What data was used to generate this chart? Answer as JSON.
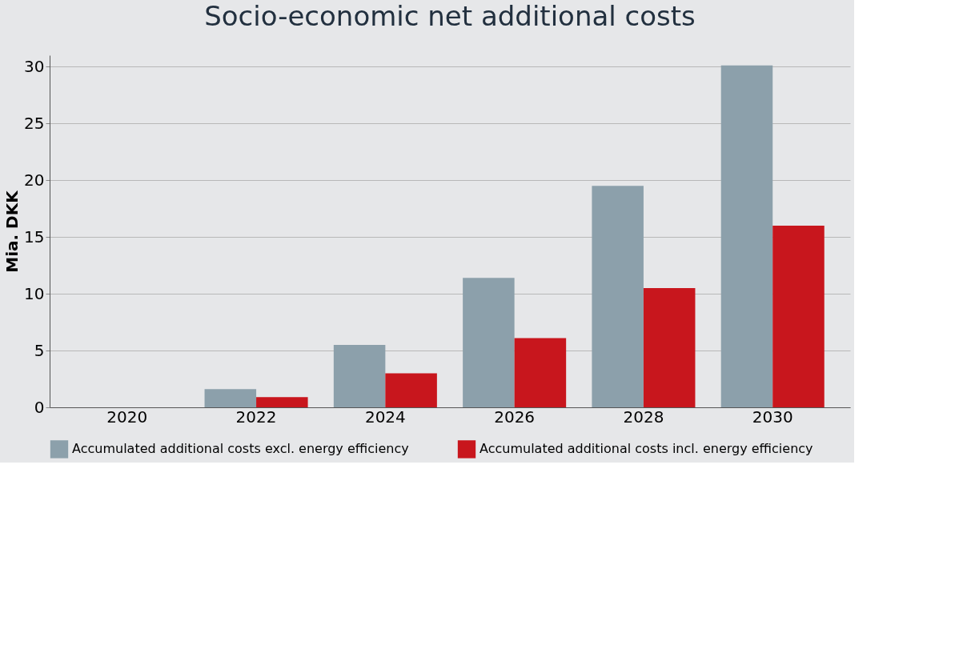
{
  "chart_data": {
    "type": "bar",
    "title": "Socio-economic net additional costs",
    "ylabel": "Mia. DKK",
    "categories": [
      "2020",
      "2022",
      "2024",
      "2026",
      "2028",
      "2030"
    ],
    "series": [
      {
        "name": "Accumulated additional costs excl. energy efficiency",
        "color": "#8ca0ab",
        "values": [
          0,
          1.6,
          5.5,
          11.4,
          19.5,
          30.1
        ]
      },
      {
        "name": "Accumulated additional costs incl. energy efficiency",
        "color": "#c8161d",
        "values": [
          0,
          0.9,
          3.0,
          6.1,
          10.5,
          16.0
        ]
      }
    ],
    "ylim": [
      0,
      31
    ],
    "yticks": [
      0,
      5,
      10,
      15,
      20,
      25,
      30
    ],
    "grid": "y",
    "legend": "bottom"
  }
}
